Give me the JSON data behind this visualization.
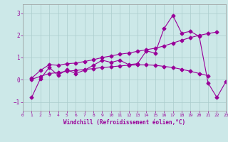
{
  "xlabel": "Windchill (Refroidissement éolien,°C)",
  "bg_color": "#cce8e8",
  "line_color": "#990099",
  "grid_color": "#aacccc",
  "xlim": [
    0,
    23
  ],
  "ylim": [
    -1.4,
    3.4
  ],
  "yticks": [
    -1,
    0,
    1,
    2,
    3
  ],
  "xticks": [
    0,
    1,
    2,
    3,
    4,
    5,
    6,
    7,
    8,
    9,
    10,
    11,
    12,
    13,
    14,
    15,
    16,
    17,
    18,
    19,
    20,
    21,
    22,
    23
  ],
  "x": [
    0,
    1,
    2,
    3,
    4,
    5,
    6,
    7,
    8,
    9,
    10,
    11,
    12,
    13,
    14,
    15,
    16,
    17,
    18,
    19,
    20,
    21,
    22,
    23
  ],
  "y_main": [
    null,
    -0.8,
    0.05,
    0.55,
    0.2,
    0.45,
    0.28,
    0.43,
    0.65,
    0.88,
    0.78,
    0.88,
    0.68,
    0.72,
    1.3,
    1.2,
    2.3,
    2.9,
    2.1,
    2.18,
    1.95,
    -0.15,
    -0.8,
    -0.1
  ],
  "y_trend1": [
    null,
    0.07,
    0.42,
    0.68,
    0.65,
    0.72,
    0.75,
    0.82,
    0.9,
    1.0,
    1.07,
    1.15,
    1.2,
    1.28,
    1.35,
    1.42,
    1.52,
    1.65,
    1.78,
    1.9,
    2.0,
    2.08,
    2.15,
    null
  ],
  "y_trend2": [
    null,
    0.02,
    0.15,
    0.28,
    0.32,
    0.38,
    0.42,
    0.46,
    0.5,
    0.55,
    0.58,
    0.62,
    0.65,
    0.67,
    0.67,
    0.65,
    0.6,
    0.55,
    0.47,
    0.38,
    0.28,
    0.18,
    null,
    null
  ]
}
